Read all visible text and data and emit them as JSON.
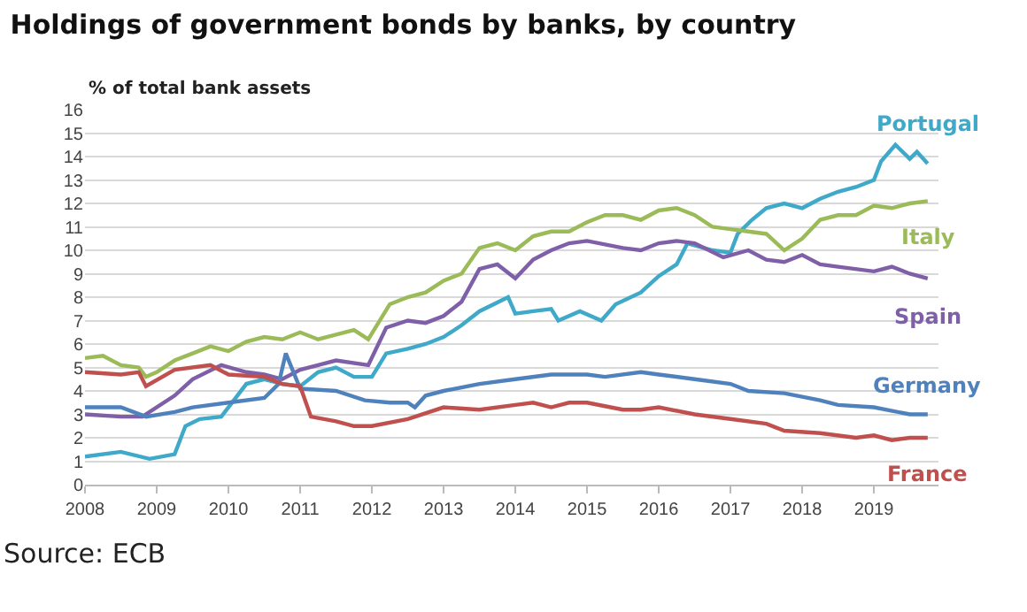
{
  "chart_data": {
    "type": "line",
    "title": "Holdings of government bonds by banks, by country",
    "ylabel": "% of total bank assets",
    "annotations": [
      "Source: ECB"
    ],
    "xlim": [
      2008,
      2019.9
    ],
    "xticks": [
      2008,
      2009,
      2010,
      2011,
      2012,
      2013,
      2014,
      2015,
      2016,
      2017,
      2018,
      2019
    ],
    "ylim": [
      0,
      16
    ],
    "yticks": [
      0,
      1,
      2,
      3,
      4,
      5,
      6,
      7,
      8,
      9,
      10,
      11,
      12,
      13,
      14,
      15,
      16
    ],
    "grid": "y",
    "legend": false,
    "marker": "none",
    "line_style": "solid",
    "series": [
      {
        "name": "Portugal",
        "color": "#3fa9c9",
        "x": [
          2008,
          2008.5,
          2008.9,
          2009.25,
          2009.4,
          2009.6,
          2009.9,
          2010.25,
          2010.5,
          2010.75,
          2011,
          2011.25,
          2011.5,
          2011.75,
          2012,
          2012.2,
          2012.5,
          2012.75,
          2013,
          2013.25,
          2013.5,
          2013.9,
          2014,
          2014.25,
          2014.5,
          2014.6,
          2014.9,
          2015.2,
          2015.4,
          2015.75,
          2016,
          2016.25,
          2016.4,
          2016.75,
          2017,
          2017.1,
          2017.3,
          2017.5,
          2017.75,
          2018,
          2018.25,
          2018.5,
          2018.75,
          2019,
          2019.1,
          2019.3,
          2019.5,
          2019.6,
          2019.75
        ],
        "values": [
          1.2,
          1.4,
          1.1,
          1.3,
          2.5,
          2.8,
          2.9,
          4.3,
          4.5,
          4.3,
          4.2,
          4.8,
          5.0,
          4.6,
          4.6,
          5.6,
          5.8,
          6.0,
          6.3,
          6.8,
          7.4,
          8.0,
          7.3,
          7.4,
          7.5,
          7.0,
          7.4,
          7.0,
          7.7,
          8.2,
          8.9,
          9.4,
          10.3,
          10.0,
          9.9,
          10.7,
          11.3,
          11.8,
          12.0,
          11.8,
          12.2,
          12.5,
          12.7,
          13.0,
          13.8,
          14.5,
          13.9,
          14.2,
          13.7
        ]
      },
      {
        "name": "Italy",
        "color": "#9bbb59",
        "x": [
          2008,
          2008.25,
          2008.5,
          2008.75,
          2008.85,
          2009,
          2009.25,
          2009.5,
          2009.75,
          2010,
          2010.25,
          2010.5,
          2010.75,
          2011,
          2011.25,
          2011.5,
          2011.75,
          2011.95,
          2012.25,
          2012.5,
          2012.75,
          2013,
          2013.25,
          2013.5,
          2013.75,
          2014,
          2014.25,
          2014.5,
          2014.75,
          2015,
          2015.25,
          2015.5,
          2015.75,
          2016,
          2016.25,
          2016.5,
          2016.75,
          2017,
          2017.25,
          2017.5,
          2017.75,
          2018,
          2018.25,
          2018.5,
          2018.75,
          2019,
          2019.25,
          2019.5,
          2019.75
        ],
        "values": [
          5.4,
          5.5,
          5.1,
          5.0,
          4.6,
          4.8,
          5.3,
          5.6,
          5.9,
          5.7,
          6.1,
          6.3,
          6.2,
          6.5,
          6.2,
          6.4,
          6.6,
          6.2,
          7.7,
          8.0,
          8.2,
          8.7,
          9.0,
          10.1,
          10.3,
          10.0,
          10.6,
          10.8,
          10.8,
          11.2,
          11.5,
          11.5,
          11.3,
          11.7,
          11.8,
          11.5,
          11.0,
          10.9,
          10.8,
          10.7,
          10.0,
          10.5,
          11.3,
          11.5,
          11.5,
          11.9,
          11.8,
          12.0,
          12.1
        ]
      },
      {
        "name": "Spain",
        "color": "#7f5fa8",
        "x": [
          2008,
          2008.5,
          2008.8,
          2009.25,
          2009.5,
          2009.9,
          2010.25,
          2010.5,
          2010.75,
          2011,
          2011.25,
          2011.5,
          2011.95,
          2012.2,
          2012.5,
          2012.75,
          2013,
          2013.25,
          2013.5,
          2013.75,
          2014,
          2014.25,
          2014.5,
          2014.75,
          2015,
          2015.5,
          2015.75,
          2016,
          2016.25,
          2016.5,
          2016.9,
          2017.25,
          2017.5,
          2017.75,
          2018,
          2018.25,
          2018.5,
          2019,
          2019.25,
          2019.5,
          2019.75
        ],
        "values": [
          3.0,
          2.9,
          2.9,
          3.8,
          4.5,
          5.1,
          4.8,
          4.7,
          4.5,
          4.9,
          5.1,
          5.3,
          5.1,
          6.7,
          7.0,
          6.9,
          7.2,
          7.8,
          9.2,
          9.4,
          8.8,
          9.6,
          10.0,
          10.3,
          10.4,
          10.1,
          10.0,
          10.3,
          10.4,
          10.3,
          9.7,
          10.0,
          9.6,
          9.5,
          9.8,
          9.4,
          9.3,
          9.1,
          9.3,
          9.0,
          8.8
        ]
      },
      {
        "name": "Germany",
        "color": "#4f81bd",
        "x": [
          2008,
          2008.5,
          2008.85,
          2009.25,
          2009.5,
          2010,
          2010.5,
          2010.7,
          2010.8,
          2011,
          2011.5,
          2011.9,
          2012.25,
          2012.5,
          2012.6,
          2012.75,
          2013,
          2013.5,
          2014,
          2014.5,
          2015,
          2015.25,
          2015.75,
          2016,
          2016.5,
          2017,
          2017.25,
          2017.75,
          2018.25,
          2018.5,
          2019,
          2019.5,
          2019.75
        ],
        "values": [
          3.3,
          3.3,
          2.9,
          3.1,
          3.3,
          3.5,
          3.7,
          4.3,
          5.6,
          4.1,
          4.0,
          3.6,
          3.5,
          3.5,
          3.3,
          3.8,
          4.0,
          4.3,
          4.5,
          4.7,
          4.7,
          4.6,
          4.8,
          4.7,
          4.5,
          4.3,
          4.0,
          3.9,
          3.6,
          3.4,
          3.3,
          3.0,
          3.0
        ]
      },
      {
        "name": "France",
        "color": "#c0504d",
        "x": [
          2008,
          2008.5,
          2008.75,
          2008.85,
          2009.25,
          2009.75,
          2010,
          2010.5,
          2010.75,
          2011,
          2011.15,
          2011.5,
          2011.75,
          2012,
          2012.5,
          2013,
          2013.5,
          2014,
          2014.25,
          2014.5,
          2014.75,
          2015,
          2015.5,
          2015.75,
          2016,
          2016.5,
          2017,
          2017.5,
          2017.75,
          2018.25,
          2018.75,
          2019,
          2019.25,
          2019.5,
          2019.75
        ],
        "values": [
          4.8,
          4.7,
          4.8,
          4.2,
          4.9,
          5.1,
          4.7,
          4.6,
          4.3,
          4.2,
          2.9,
          2.7,
          2.5,
          2.5,
          2.8,
          3.3,
          3.2,
          3.4,
          3.5,
          3.3,
          3.5,
          3.5,
          3.2,
          3.2,
          3.3,
          3.0,
          2.8,
          2.6,
          2.3,
          2.2,
          2.0,
          2.1,
          1.9,
          2.0,
          2.0
        ]
      }
    ]
  }
}
